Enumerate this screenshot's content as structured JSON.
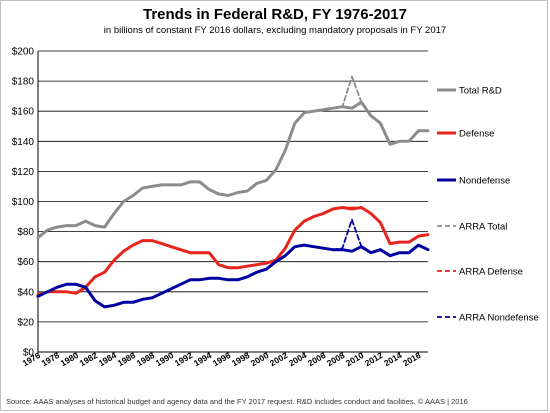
{
  "chart_data": {
    "type": "line",
    "title": "Trends in Federal R&D, FY 1976-2017",
    "subtitle": "in billions of constant FY 2016 dollars, excluding mandatory proposals in FY 2017",
    "xlabel": "",
    "ylabel": "",
    "ylim": [
      0,
      200
    ],
    "y_ticks": [
      "$0",
      "$20",
      "$40",
      "$60",
      "$80",
      "$100",
      "$120",
      "$140",
      "$160",
      "$180",
      "$200"
    ],
    "y_tick_values": [
      0,
      20,
      40,
      60,
      80,
      100,
      120,
      140,
      160,
      180,
      200
    ],
    "x_ticks": [
      "1976",
      "1978",
      "1980",
      "1982",
      "1984",
      "1986",
      "1988",
      "1990",
      "1992",
      "1994",
      "1996",
      "1998",
      "2000",
      "2002",
      "2004",
      "2006",
      "2008",
      "2010",
      "2012",
      "2014",
      "2016"
    ],
    "xlim": [
      1976,
      2017
    ],
    "grid": "horizontal",
    "legend": "right",
    "series": [
      {
        "name": "Total R&D",
        "color": "#8c8c8c",
        "dash": false,
        "x": [
          1976,
          1977,
          1978,
          1979,
          1980,
          1981,
          1982,
          1983,
          1984,
          1985,
          1986,
          1987,
          1988,
          1989,
          1990,
          1991,
          1992,
          1993,
          1994,
          1995,
          1996,
          1997,
          1998,
          1999,
          2000,
          2001,
          2002,
          2003,
          2004,
          2005,
          2006,
          2007,
          2008,
          2009,
          2010,
          2011,
          2012,
          2013,
          2014,
          2015,
          2016,
          2017
        ],
        "values": [
          76,
          81,
          83,
          84,
          84,
          87,
          84,
          83,
          92,
          100,
          104,
          109,
          110,
          111,
          111,
          111,
          113,
          113,
          108,
          105,
          104,
          106,
          107,
          112,
          114,
          121,
          134,
          152,
          159,
          160,
          161,
          162,
          163,
          162,
          166,
          157,
          152,
          138,
          140,
          140,
          147,
          147
        ]
      },
      {
        "name": "Defense",
        "color": "#e8251c",
        "dash": false,
        "x": [
          1976,
          1977,
          1978,
          1979,
          1980,
          1981,
          1982,
          1983,
          1984,
          1985,
          1986,
          1987,
          1988,
          1989,
          1990,
          1991,
          1992,
          1993,
          1994,
          1995,
          1996,
          1997,
          1998,
          1999,
          2000,
          2001,
          2002,
          2003,
          2004,
          2005,
          2006,
          2007,
          2008,
          2009,
          2010,
          2011,
          2012,
          2013,
          2014,
          2015,
          2016,
          2017
        ],
        "values": [
          38,
          40,
          40,
          40,
          39,
          43,
          50,
          53,
          61,
          67,
          71,
          74,
          74,
          72,
          70,
          68,
          66,
          66,
          66,
          58,
          56,
          56,
          57,
          58,
          59,
          61,
          69,
          81,
          87,
          90,
          92,
          95,
          96,
          95,
          96,
          92,
          86,
          72,
          73,
          73,
          77,
          78
        ]
      },
      {
        "name": "Nondefense",
        "color": "#0000a0",
        "dash": false,
        "x": [
          1976,
          1977,
          1978,
          1979,
          1980,
          1981,
          1982,
          1983,
          1984,
          1985,
          1986,
          1987,
          1988,
          1989,
          1990,
          1991,
          1992,
          1993,
          1994,
          1995,
          1996,
          1997,
          1998,
          1999,
          2000,
          2001,
          2002,
          2003,
          2004,
          2005,
          2006,
          2007,
          2008,
          2009,
          2010,
          2011,
          2012,
          2013,
          2014,
          2015,
          2016,
          2017
        ],
        "values": [
          37,
          40,
          43,
          45,
          45,
          43,
          34,
          30,
          31,
          33,
          33,
          35,
          36,
          39,
          42,
          45,
          48,
          48,
          49,
          49,
          48,
          48,
          50,
          53,
          55,
          60,
          64,
          70,
          71,
          70,
          69,
          68,
          68,
          67,
          70,
          66,
          68,
          64,
          66,
          66,
          71,
          68
        ]
      },
      {
        "name": "ARRA Total",
        "color": "#8c8c8c",
        "dash": true,
        "x": [
          2007,
          2008,
          2009,
          2010
        ],
        "values": [
          162,
          163,
          183,
          166
        ]
      },
      {
        "name": "ARRA Defense",
        "color": "#e8251c",
        "dash": true,
        "x": [
          2008,
          2009,
          2010
        ],
        "values": [
          96,
          96,
          96
        ]
      },
      {
        "name": "ARRA Nondefense",
        "color": "#0000a0",
        "dash": true,
        "x": [
          2007,
          2008,
          2009,
          2010
        ],
        "values": [
          68,
          69,
          88,
          70
        ]
      }
    ]
  },
  "source": "Source: AAAS analyses of historical budget and agency data and the FY 2017 request. R&D includes conduct and facilities. © AAAS | 2016"
}
